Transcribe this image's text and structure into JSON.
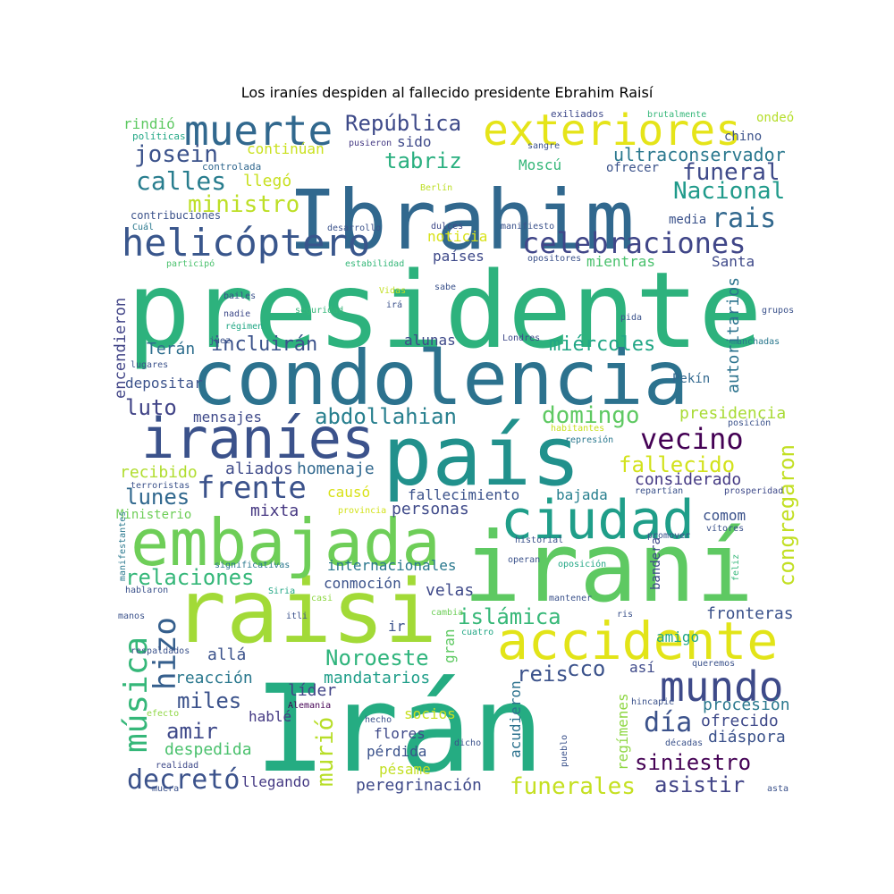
{
  "title": "Los iraníes despiden al fallecido presidente Ebrahim Raisí",
  "palette": {
    "dark_purple": "#482878",
    "indigo": "#3e4a89",
    "blue": "#31688e",
    "teal": "#26828e",
    "sea_green": "#1f9e89",
    "green": "#35b779",
    "lime": "#6ece58",
    "yellow_green": "#b5de2b",
    "yellow": "#e0e31b"
  },
  "words": [
    {
      "text": "presidente",
      "color": "#2db27d"
    },
    {
      "text": "condolencia",
      "color": "#2c728e"
    },
    {
      "text": "Ibrahim",
      "color": "#31688e"
    },
    {
      "text": "Irán",
      "color": "#25ac82"
    },
    {
      "text": "raisi",
      "color": "#a2da37"
    },
    {
      "text": "iraní",
      "color": "#5ec962"
    },
    {
      "text": "país",
      "color": "#21918c"
    },
    {
      "text": "embajada",
      "color": "#6ece58"
    },
    {
      "text": "iraníes",
      "color": "#3b528b"
    },
    {
      "text": "ciudad",
      "color": "#1f9e89"
    },
    {
      "text": "accidente",
      "color": "#e2e418"
    },
    {
      "text": "exteriores",
      "color": "#e5e419"
    },
    {
      "text": "muerte",
      "color": "#31688e"
    },
    {
      "text": "mundo",
      "color": "#3e4a89"
    },
    {
      "text": "helicóptero",
      "color": "#39568c"
    },
    {
      "text": "celebraciones",
      "color": "#404688"
    },
    {
      "text": "música",
      "color": "#35b779"
    },
    {
      "text": "vecino",
      "color": "#440154"
    },
    {
      "text": "frente",
      "color": "#3b528b"
    },
    {
      "text": "rais",
      "color": "#31688e"
    },
    {
      "text": "hizo",
      "color": "#355f8d"
    },
    {
      "text": "República",
      "color": "#3e4a89"
    },
    {
      "text": "calles",
      "color": "#287d8e"
    },
    {
      "text": "josein",
      "color": "#3b528b"
    },
    {
      "text": "funeral",
      "color": "#3e4989"
    },
    {
      "text": "Nacional",
      "color": "#1f9a8a"
    },
    {
      "text": "ministro",
      "color": "#bddf26"
    },
    {
      "text": "tabriz",
      "color": "#29af7f"
    },
    {
      "text": "ultraconservador",
      "color": "#2a788e"
    },
    {
      "text": "domingo",
      "color": "#5ec962"
    },
    {
      "text": "abdollahian",
      "color": "#277f8e"
    },
    {
      "text": "miércoles",
      "color": "#21a685"
    },
    {
      "text": "incluirán",
      "color": "#3b528b"
    },
    {
      "text": "fallecido",
      "color": "#d2e21b"
    },
    {
      "text": "relaciones",
      "color": "#35b779"
    },
    {
      "text": "lunes",
      "color": "#31688e"
    },
    {
      "text": "luto",
      "color": "#414487"
    },
    {
      "text": "día",
      "color": "#3b528b"
    },
    {
      "text": "decretó",
      "color": "#3b528b"
    },
    {
      "text": "islámica",
      "color": "#37b878"
    },
    {
      "text": "Noroeste",
      "color": "#2fb47c"
    },
    {
      "text": "funerales",
      "color": "#c5e021"
    },
    {
      "text": "asistir",
      "color": "#414487"
    },
    {
      "text": "siniestro",
      "color": "#440154"
    },
    {
      "text": "murió",
      "color": "#b8de29"
    },
    {
      "text": "miles",
      "color": "#3b528b"
    },
    {
      "text": "amir",
      "color": "#3e4989"
    },
    {
      "text": "congregaron",
      "color": "#c2df23"
    },
    {
      "text": "autoritarios",
      "color": "#2c738e"
    },
    {
      "text": "encendieron",
      "color": "#414487"
    },
    {
      "text": "Terán",
      "color": "#2e6e8e"
    },
    {
      "text": "depositar",
      "color": "#3b528b"
    },
    {
      "text": "mensajes",
      "color": "#3e4989"
    },
    {
      "text": "presidencia",
      "color": "#a8db34"
    },
    {
      "text": "considerado",
      "color": "#443983"
    },
    {
      "text": "homenaje",
      "color": "#31688e"
    },
    {
      "text": "aliados",
      "color": "#3e4a89"
    },
    {
      "text": "recibido",
      "color": "#b0dd2f"
    },
    {
      "text": "causó",
      "color": "#d8e219"
    },
    {
      "text": "fallecimiento",
      "color": "#3b528b"
    },
    {
      "text": "bajada",
      "color": "#277f8e"
    },
    {
      "text": "personas",
      "color": "#3e4989"
    },
    {
      "text": "mixta",
      "color": "#453781"
    },
    {
      "text": "comom",
      "color": "#3b528b"
    },
    {
      "text": "internacionales",
      "color": "#2a788e"
    },
    {
      "text": "conmoción",
      "color": "#3b528b"
    },
    {
      "text": "velas",
      "color": "#3e4989"
    },
    {
      "text": "fronteras",
      "color": "#3b528b"
    },
    {
      "text": "amigo",
      "color": "#22a785"
    },
    {
      "text": "reacción",
      "color": "#2a788e"
    },
    {
      "text": "allá",
      "color": "#3b528b"
    },
    {
      "text": "líder",
      "color": "#414487"
    },
    {
      "text": "mandatarios",
      "color": "#1f9e89"
    },
    {
      "text": "cco",
      "color": "#3b528b"
    },
    {
      "text": "reis",
      "color": "#3b528b"
    },
    {
      "text": "procesión",
      "color": "#2a788e"
    },
    {
      "text": "ofrecido",
      "color": "#3e4989"
    },
    {
      "text": "diáspora",
      "color": "#3b528b"
    },
    {
      "text": "despedida",
      "color": "#4ac16d"
    },
    {
      "text": "hablé",
      "color": "#443983"
    },
    {
      "text": "socios",
      "color": "#c8e020"
    },
    {
      "text": "flores",
      "color": "#3e4989"
    },
    {
      "text": "pérdida",
      "color": "#3b528b"
    },
    {
      "text": "pésame",
      "color": "#c2df23"
    },
    {
      "text": "peregrinación",
      "color": "#3e4989"
    },
    {
      "text": "llegando",
      "color": "#443983"
    },
    {
      "text": "gran",
      "color": "#5ec962"
    },
    {
      "text": "acudieron",
      "color": "#2c728e"
    },
    {
      "text": "regímenes",
      "color": "#8fd744"
    },
    {
      "text": "así",
      "color": "#3e4989"
    },
    {
      "text": "mientras",
      "color": "#4ac16d"
    },
    {
      "text": "Santa",
      "color": "#3e4989"
    },
    {
      "text": "países",
      "color": "#3e4989"
    },
    {
      "text": "noticia",
      "color": "#d8e219"
    },
    {
      "text": "llegó",
      "color": "#c8e020"
    },
    {
      "text": "Moscú",
      "color": "#35b779"
    },
    {
      "text": "continúan",
      "color": "#cae11f"
    },
    {
      "text": "sido",
      "color": "#3e4989"
    },
    {
      "text": "ofrecer",
      "color": "#3b528b"
    },
    {
      "text": "chino",
      "color": "#3b528b"
    },
    {
      "text": "media",
      "color": "#3b528b"
    },
    {
      "text": "rindió",
      "color": "#5ec962"
    },
    {
      "text": "ondeó",
      "color": "#b5de2b"
    },
    {
      "text": "alunas",
      "color": "#3e4989"
    },
    {
      "text": "Pekín",
      "color": "#31688e"
    },
    {
      "text": "ir",
      "color": "#3b528b"
    },
    {
      "text": "bandera",
      "color": "#3e4989"
    },
    {
      "text": "Ministerio",
      "color": "#6ece58"
    },
    {
      "text": "contribuciones",
      "color": "#3b528b"
    },
    {
      "text": "controlada",
      "color": "#31688e"
    },
    {
      "text": "políticas",
      "color": "#22a785"
    },
    {
      "text": "exiliados",
      "color": "#3e4989"
    },
    {
      "text": "brutalmente",
      "color": "#35b779"
    },
    {
      "text": "pusieron",
      "color": "#443983"
    },
    {
      "text": "sangre",
      "color": "#3b528b"
    },
    {
      "text": "Berlín",
      "color": "#bddf26"
    },
    {
      "text": "Cuál",
      "color": "#2a788e"
    },
    {
      "text": "desarrollo",
      "color": "#3b528b"
    },
    {
      "text": "dulces",
      "color": "#3e4989"
    },
    {
      "text": "manifiesto",
      "color": "#3b528b"
    },
    {
      "text": "opositores",
      "color": "#3b528b"
    },
    {
      "text": "participó",
      "color": "#4ac16d"
    },
    {
      "text": "estabilidad",
      "color": "#35b779"
    },
    {
      "text": "Vidas",
      "color": "#c2df23"
    },
    {
      "text": "sabe",
      "color": "#3b528b"
    },
    {
      "text": "bailes",
      "color": "#3b528b"
    },
    {
      "text": "nadie",
      "color": "#3e4989"
    },
    {
      "text": "seguridad",
      "color": "#35b779"
    },
    {
      "text": "irá",
      "color": "#3b528b"
    },
    {
      "text": "régimen",
      "color": "#22a785"
    },
    {
      "text": "juez",
      "color": "#3b528b"
    },
    {
      "text": "lugares",
      "color": "#3b528b"
    },
    {
      "text": "Londres",
      "color": "#3e4989"
    },
    {
      "text": "pida",
      "color": "#3b528b"
    },
    {
      "text": "grupos",
      "color": "#3b528b"
    },
    {
      "text": "manchadas",
      "color": "#2a788e"
    },
    {
      "text": "habitantes",
      "color": "#c8e020"
    },
    {
      "text": "represión",
      "color": "#2a788e"
    },
    {
      "text": "posición",
      "color": "#3b528b"
    },
    {
      "text": "terroristas",
      "color": "#3b528b"
    },
    {
      "text": "repartían",
      "color": "#3b528b"
    },
    {
      "text": "prosperidad",
      "color": "#3e4989"
    },
    {
      "text": "provincia",
      "color": "#d2e21b"
    },
    {
      "text": "promover",
      "color": "#3b528b"
    },
    {
      "text": "vítores",
      "color": "#3b528b"
    },
    {
      "text": "historial",
      "color": "#3b528b"
    },
    {
      "text": "manifestantes",
      "color": "#2a788e"
    },
    {
      "text": "significativas",
      "color": "#2a788e"
    },
    {
      "text": "operan",
      "color": "#3b528b"
    },
    {
      "text": "oposición",
      "color": "#22a785"
    },
    {
      "text": "hablaron",
      "color": "#3b528b"
    },
    {
      "text": "Siria",
      "color": "#22a785"
    },
    {
      "text": "casi",
      "color": "#8fd744"
    },
    {
      "text": "mantener",
      "color": "#3b528b"
    },
    {
      "text": "feliz",
      "color": "#35b779"
    },
    {
      "text": "manos",
      "color": "#3b528b"
    },
    {
      "text": "itli",
      "color": "#3b528b"
    },
    {
      "text": "cambia",
      "color": "#6ece58"
    },
    {
      "text": "ris",
      "color": "#3b528b"
    },
    {
      "text": "respaldados",
      "color": "#3b528b"
    },
    {
      "text": "cuatro",
      "color": "#22a785"
    },
    {
      "text": "queremos",
      "color": "#3b528b"
    },
    {
      "text": "efecto",
      "color": "#8fd744"
    },
    {
      "text": "Alemania",
      "color": "#440154"
    },
    {
      "text": "hincapié",
      "color": "#3b528b"
    },
    {
      "text": "hecho",
      "color": "#3b528b"
    },
    {
      "text": "dicho",
      "color": "#3b528b"
    },
    {
      "text": "pueblo",
      "color": "#3b528b"
    },
    {
      "text": "décadas",
      "color": "#3b528b"
    },
    {
      "text": "realidad",
      "color": "#3e4989"
    },
    {
      "text": "muera",
      "color": "#3b528b"
    },
    {
      "text": "asta",
      "color": "#3b528b"
    }
  ]
}
